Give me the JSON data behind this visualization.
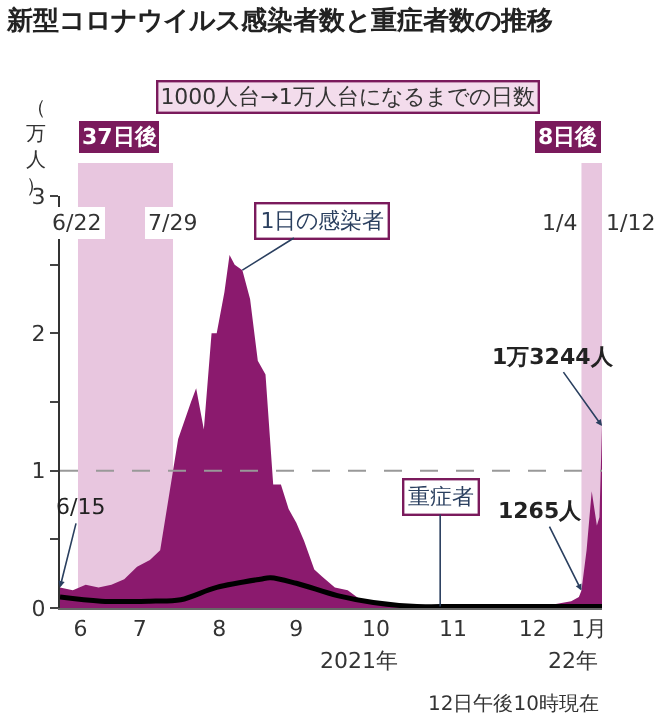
{
  "chart_data": {
    "type": "area",
    "title": "新型コロナウイルス感染者数と重症者数の推移",
    "ylabel": "（万人）",
    "xlim": [
      "2021-06-15",
      "2022-01-12"
    ],
    "ylim": [
      0,
      3
    ],
    "xticks": [
      {
        "value": "2021-06-23",
        "label": "6"
      },
      {
        "value": "2021-07-16",
        "label": "7"
      },
      {
        "value": "2021-08-16",
        "label": "8"
      },
      {
        "value": "2021-09-15",
        "label": "9"
      },
      {
        "value": "2021-10-16",
        "label": "10"
      },
      {
        "value": "2021-11-15",
        "label": "11"
      },
      {
        "value": "2021-12-16",
        "label": "12"
      },
      {
        "value": "2022-01-07",
        "label": "1月"
      }
    ],
    "yticks": [
      0,
      {
        "value": 0.5,
        "label": null
      },
      1,
      {
        "value": 1.5,
        "label": null
      },
      2,
      {
        "value": 2.5,
        "label": null
      },
      3
    ],
    "grid": false,
    "legend": false,
    "series": [
      {
        "name": "1日の感染者",
        "color": "#8b1a6e",
        "x": [
          "2021-06-15",
          "2021-06-20",
          "2021-06-25",
          "2021-06-30",
          "2021-07-05",
          "2021-07-10",
          "2021-07-15",
          "2021-07-20",
          "2021-07-24",
          "2021-07-29",
          "2021-07-31",
          "2021-08-05",
          "2021-08-07",
          "2021-08-10",
          "2021-08-13",
          "2021-08-15",
          "2021-08-18",
          "2021-08-20",
          "2021-08-22",
          "2021-08-25",
          "2021-08-28",
          "2021-08-31",
          "2021-09-03",
          "2021-09-06",
          "2021-09-09",
          "2021-09-12",
          "2021-09-15",
          "2021-09-18",
          "2021-09-22",
          "2021-09-25",
          "2021-09-30",
          "2021-10-05",
          "2021-10-10",
          "2021-10-15",
          "2021-10-20",
          "2021-10-31",
          "2021-11-15",
          "2021-11-30",
          "2021-12-15",
          "2021-12-25",
          "2021-12-31",
          "2022-01-03",
          "2022-01-04",
          "2022-01-06",
          "2022-01-08",
          "2022-01-10",
          "2022-01-11",
          "2022-01-12"
        ],
        "values": [
          0.15,
          0.13,
          0.17,
          0.15,
          0.17,
          0.21,
          0.3,
          0.35,
          0.42,
          1.0,
          1.23,
          1.5,
          1.6,
          1.3,
          2.0,
          2.0,
          2.3,
          2.57,
          2.5,
          2.46,
          2.25,
          1.8,
          1.7,
          0.9,
          0.9,
          0.72,
          0.62,
          0.49,
          0.28,
          0.23,
          0.15,
          0.13,
          0.06,
          0.05,
          0.04,
          0.02,
          0.02,
          0.01,
          0.015,
          0.03,
          0.05,
          0.08,
          0.1265,
          0.42,
          0.85,
          0.6,
          0.66,
          1.3244
        ]
      },
      {
        "name": "重症者",
        "type": "line",
        "color": "#000000",
        "x": [
          "2021-06-15",
          "2021-07-01",
          "2021-07-20",
          "2021-08-01",
          "2021-08-15",
          "2021-09-01",
          "2021-09-05",
          "2021-09-15",
          "2021-10-01",
          "2021-10-15",
          "2021-11-01",
          "2021-11-10",
          "2021-12-01",
          "2022-01-12"
        ],
        "values": [
          0.08,
          0.05,
          0.05,
          0.06,
          0.15,
          0.21,
          0.22,
          0.18,
          0.09,
          0.04,
          0.01,
          0.01,
          0.01,
          0.01
        ]
      }
    ],
    "bands": [
      {
        "axis": "x",
        "from": "2021-06-22",
        "to": "2021-07-29",
        "label": "37日後",
        "color": "#e8c6df"
      },
      {
        "axis": "x",
        "from": "2022-01-04",
        "to": "2022-01-12",
        "label": "8日後",
        "color": "#e8c6df"
      }
    ],
    "ref_lines": [
      {
        "axis": "y",
        "value": 1,
        "color": "#999999",
        "line_style": "dashed"
      }
    ],
    "annotations": [
      "1000人台→1万人台になるまでの日数",
      {
        "text": "6/22",
        "x": "2021-06-22",
        "y": 2.8
      },
      {
        "text": "7/29",
        "x": "2021-07-29",
        "y": 2.8
      },
      {
        "text": "1/4",
        "x": "2022-01-04",
        "y": 2.8
      },
      {
        "text": "1/12",
        "x": "2022-01-12",
        "y": 2.8
      },
      {
        "text": "6/15",
        "x": "2021-06-15",
        "y": 0.15
      },
      {
        "text": "1万3244人",
        "x": "2022-01-12",
        "y": 1.3244
      },
      {
        "text": "1265人",
        "x": "2022-01-04",
        "y": 0.1265
      },
      "2021年",
      "22年",
      "12日午後10時現在"
    ]
  }
}
